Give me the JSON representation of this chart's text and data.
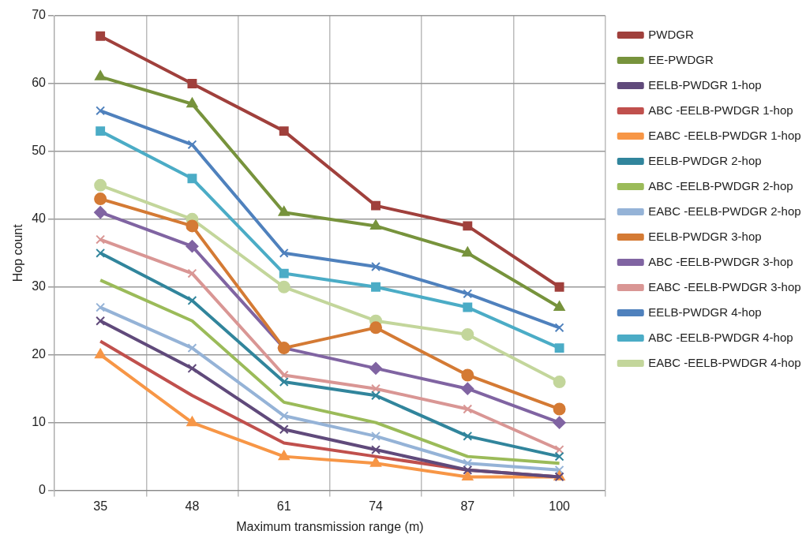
{
  "chart_data": {
    "type": "line",
    "xlabel": "Maximum transmission range (m)",
    "ylabel": "Hop count",
    "categories": [
      "35",
      "48",
      "61",
      "74",
      "87",
      "100"
    ],
    "ylim": [
      0,
      70
    ],
    "yticks": [
      0,
      10,
      20,
      30,
      40,
      50,
      60,
      70
    ],
    "grid": true,
    "legend": "right",
    "series": [
      {
        "name": "PWDGR",
        "color": "#a0403c",
        "marker": "square",
        "values": [
          67,
          60,
          53,
          42,
          39,
          30
        ]
      },
      {
        "name": "EE-PWDGR",
        "color": "#77933c",
        "marker": "triangle",
        "values": [
          61,
          57,
          41,
          39,
          35,
          27
        ]
      },
      {
        "name": "EELB-PWDGR 1-hop",
        "color": "#604a7b",
        "marker": "cross",
        "values": [
          25,
          18,
          9,
          6,
          3,
          2
        ]
      },
      {
        "name": "ABC -EELB-PWDGR 1-hop",
        "color": "#c0504d",
        "marker": "none",
        "values": [
          22,
          14,
          7,
          5,
          3,
          2
        ]
      },
      {
        "name": "EABC -EELB-PWDGR 1-hop",
        "color": "#f79646",
        "marker": "triangle",
        "values": [
          20,
          10,
          5,
          4,
          2,
          2
        ]
      },
      {
        "name": "EELB-PWDGR 2-hop",
        "color": "#31859c",
        "marker": "cross",
        "values": [
          35,
          28,
          16,
          14,
          8,
          5
        ]
      },
      {
        "name": "ABC -EELB-PWDGR 2-hop",
        "color": "#9bbb59",
        "marker": "none",
        "values": [
          31,
          25,
          13,
          10,
          5,
          4
        ]
      },
      {
        "name": "EABC -EELB-PWDGR 2-hop",
        "color": "#95b3d7",
        "marker": "cross",
        "values": [
          27,
          21,
          11,
          8,
          4,
          3
        ]
      },
      {
        "name": "EELB-PWDGR 3-hop",
        "color": "#d47a34",
        "marker": "circle",
        "values": [
          43,
          39,
          21,
          24,
          17,
          12
        ]
      },
      {
        "name": "ABC -EELB-PWDGR 3-hop",
        "color": "#8064a2",
        "marker": "diamond",
        "values": [
          41,
          36,
          21,
          18,
          15,
          10
        ]
      },
      {
        "name": "EABC -EELB-PWDGR 3-hop",
        "color": "#d99694",
        "marker": "cross",
        "values": [
          37,
          32,
          17,
          15,
          12,
          6
        ]
      },
      {
        "name": "EELB-PWDGR 4-hop",
        "color": "#4f81bd",
        "marker": "cross",
        "values": [
          56,
          51,
          35,
          33,
          29,
          24
        ]
      },
      {
        "name": "ABC -EELB-PWDGR 4-hop",
        "color": "#4bacc6",
        "marker": "square",
        "values": [
          53,
          46,
          32,
          30,
          27,
          21
        ]
      },
      {
        "name": "EABC -EELB-PWDGR 4-hop",
        "color": "#c3d69b",
        "marker": "circle",
        "values": [
          45,
          40,
          30,
          25,
          23,
          16
        ]
      }
    ]
  }
}
